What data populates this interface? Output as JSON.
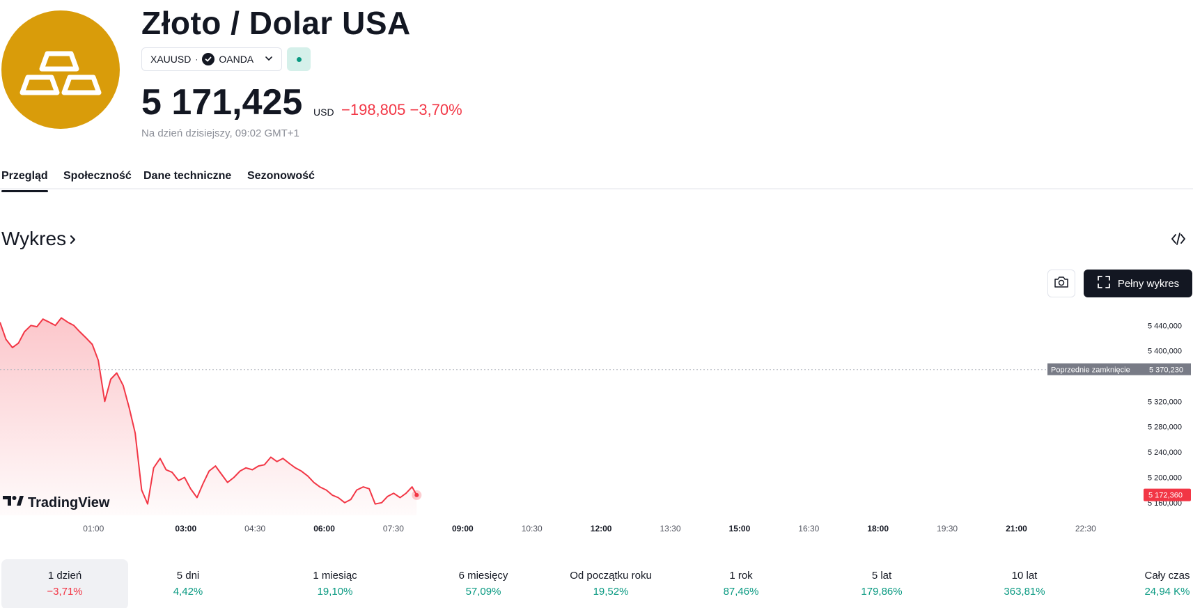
{
  "instrument": {
    "title": "Złoto / Dolar USA",
    "symbol": "XAUUSD",
    "separator": "·",
    "exchange": "OANDA",
    "status": "market-open",
    "price": "5 171,425",
    "currency": "USD",
    "change": "−198,805 −3,70%",
    "as_of": "Na dzień dzisiejszy, 09:02 GMT+1",
    "logo_icon": "gold-bars-icon"
  },
  "tabs": [
    {
      "label": "Przegląd",
      "active": true
    },
    {
      "label": "Społeczność",
      "active": false
    },
    {
      "label": "Dane techniczne",
      "active": false
    },
    {
      "label": "Sezonowość",
      "active": false
    }
  ],
  "section": {
    "title": "Wykres",
    "full_chart_label": "Pełny wykres"
  },
  "branding": {
    "logo_text": "TradingView"
  },
  "colors": {
    "accent_red": "#f23645",
    "accent_green": "#089981",
    "gold": "#d99c0a",
    "dark": "#131722"
  },
  "chart_data": {
    "type": "area",
    "x_ticks": [
      "01:00",
      "03:00",
      "04:30",
      "06:00",
      "07:30",
      "09:00",
      "10:30",
      "12:00",
      "13:30",
      "15:00",
      "16:30",
      "18:00",
      "19:30",
      "21:00",
      "22:30"
    ],
    "y_ticks": [
      "5 440,000",
      "5 400,000",
      "5 320,000",
      "5 280,000",
      "5 240,000",
      "5 200,000",
      "5 160,000"
    ],
    "ylim": [
      5140,
      5470
    ],
    "previous_close": {
      "label": "Poprzednie zamknięcie",
      "value_label": "5 370,230",
      "value": 5370.23
    },
    "last_price": {
      "value_label": "5 172,360",
      "value": 5172.36
    },
    "series": [
      {
        "x_hours": [
          0.0,
          0.13,
          0.27,
          0.4,
          0.53,
          0.67,
          0.8,
          0.93,
          1.07,
          1.2,
          1.33,
          1.47,
          1.6,
          1.73,
          1.87,
          2.0,
          2.13,
          2.27,
          2.4,
          2.53,
          2.67,
          2.8,
          2.93,
          3.07,
          3.2,
          3.33,
          3.47,
          3.6,
          3.73,
          3.87,
          4.0,
          4.13,
          4.27,
          4.4,
          4.53,
          4.67,
          4.8,
          4.93,
          5.07,
          5.2,
          5.33,
          5.47,
          5.6,
          5.73,
          5.87,
          6.0,
          6.13,
          6.27,
          6.4,
          6.53,
          6.67,
          6.8,
          6.93,
          7.07,
          7.2,
          7.33,
          7.47,
          7.6,
          7.73,
          7.87,
          8.0,
          8.13,
          8.27,
          8.4,
          8.53,
          8.67,
          8.8,
          8.93,
          9.03
        ],
        "values": [
          5445,
          5418,
          5405,
          5412,
          5430,
          5440,
          5438,
          5450,
          5445,
          5440,
          5452,
          5445,
          5440,
          5430,
          5420,
          5410,
          5385,
          5320,
          5355,
          5365,
          5345,
          5310,
          5270,
          5180,
          5158,
          5215,
          5230,
          5212,
          5208,
          5195,
          5200,
          5182,
          5168,
          5190,
          5210,
          5218,
          5205,
          5192,
          5200,
          5210,
          5215,
          5212,
          5218,
          5220,
          5232,
          5225,
          5230,
          5222,
          5215,
          5210,
          5202,
          5192,
          5185,
          5180,
          5172,
          5168,
          5160,
          5165,
          5180,
          5185,
          5182,
          5158,
          5160,
          5170,
          5175,
          5168,
          5175,
          5185,
          5172
        ]
      }
    ]
  },
  "performance": [
    {
      "label": "1 dzień",
      "value": "−3,71%",
      "sign": "neg",
      "active": true
    },
    {
      "label": "5 dni",
      "value": "4,42%",
      "sign": "pos",
      "active": false
    },
    {
      "label": "1 miesiąc",
      "value": "19,10%",
      "sign": "pos",
      "active": false
    },
    {
      "label": "6 miesięcy",
      "value": "57,09%",
      "sign": "pos",
      "active": false
    },
    {
      "label": "Od początku roku",
      "value": "19,52%",
      "sign": "pos",
      "active": false
    },
    {
      "label": "1 rok",
      "value": "87,46%",
      "sign": "pos",
      "active": false
    },
    {
      "label": "5 lat",
      "value": "179,86%",
      "sign": "pos",
      "active": false
    },
    {
      "label": "10 lat",
      "value": "363,81%",
      "sign": "pos",
      "active": false
    },
    {
      "label": "Cały czas",
      "value": "24,94 K%",
      "sign": "pos",
      "active": false
    }
  ]
}
